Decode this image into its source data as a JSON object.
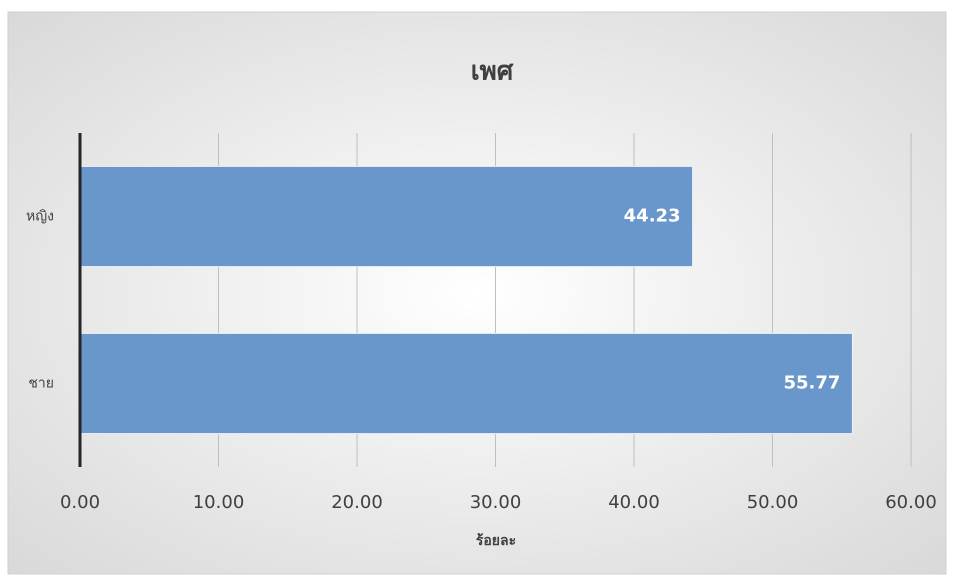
{
  "chart_data": {
    "type": "bar",
    "orientation": "horizontal",
    "title": "เพศ",
    "x_label": "ร้อยละ",
    "categories": [
      "หญิง",
      "ชาย"
    ],
    "values": [
      44.23,
      55.77
    ],
    "color": "#6a97cb",
    "xlim": [
      0,
      60
    ],
    "xticks": [
      {
        "value": 0,
        "label": "0.00"
      },
      {
        "value": 10,
        "label": "10.00"
      },
      {
        "value": 20,
        "label": "20.00"
      },
      {
        "value": 30,
        "label": "30.00"
      },
      {
        "value": 40,
        "label": "40.00"
      },
      {
        "value": 50,
        "label": "50.00"
      },
      {
        "value": 60,
        "label": "60.00"
      }
    ],
    "grid": true
  }
}
